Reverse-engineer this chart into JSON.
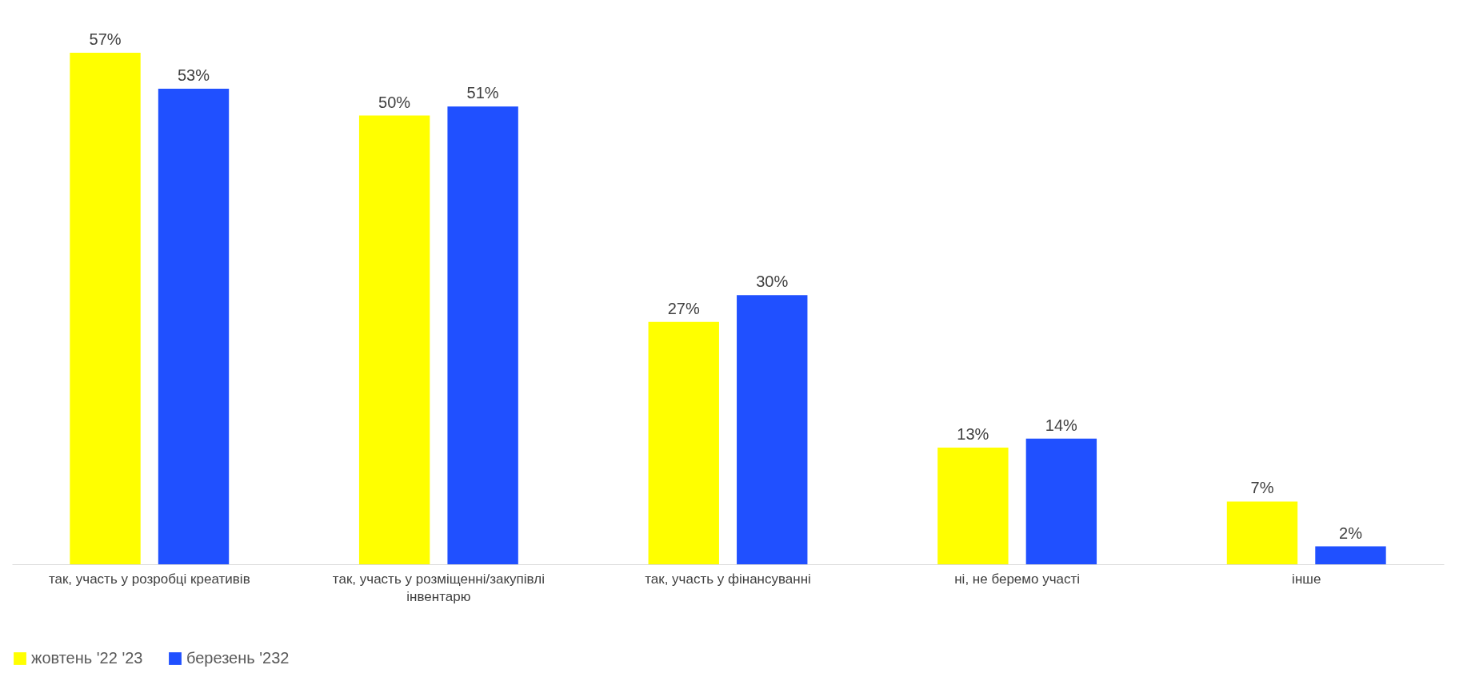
{
  "chart_data": {
    "type": "bar",
    "categories": [
      "так, участь у розробці креативів",
      "так, участь у розміщенні/закупівлі інвентарю",
      "так, участь у фінансуванні",
      "ні, не беремо участі",
      "інше"
    ],
    "series": [
      {
        "name": "жовтень '22 '23",
        "color": "#ffff00",
        "values": [
          57,
          50,
          27,
          13,
          7
        ],
        "value_labels": [
          "57%",
          "50%",
          "27%",
          "13%",
          "7%"
        ]
      },
      {
        "name": "березень '232",
        "color": "#2050ff",
        "values": [
          53,
          51,
          30,
          14,
          2
        ],
        "value_labels": [
          "53%",
          "51%",
          "30%",
          "14%",
          "2%"
        ]
      }
    ],
    "legend": "bottom",
    "grid": false
  }
}
